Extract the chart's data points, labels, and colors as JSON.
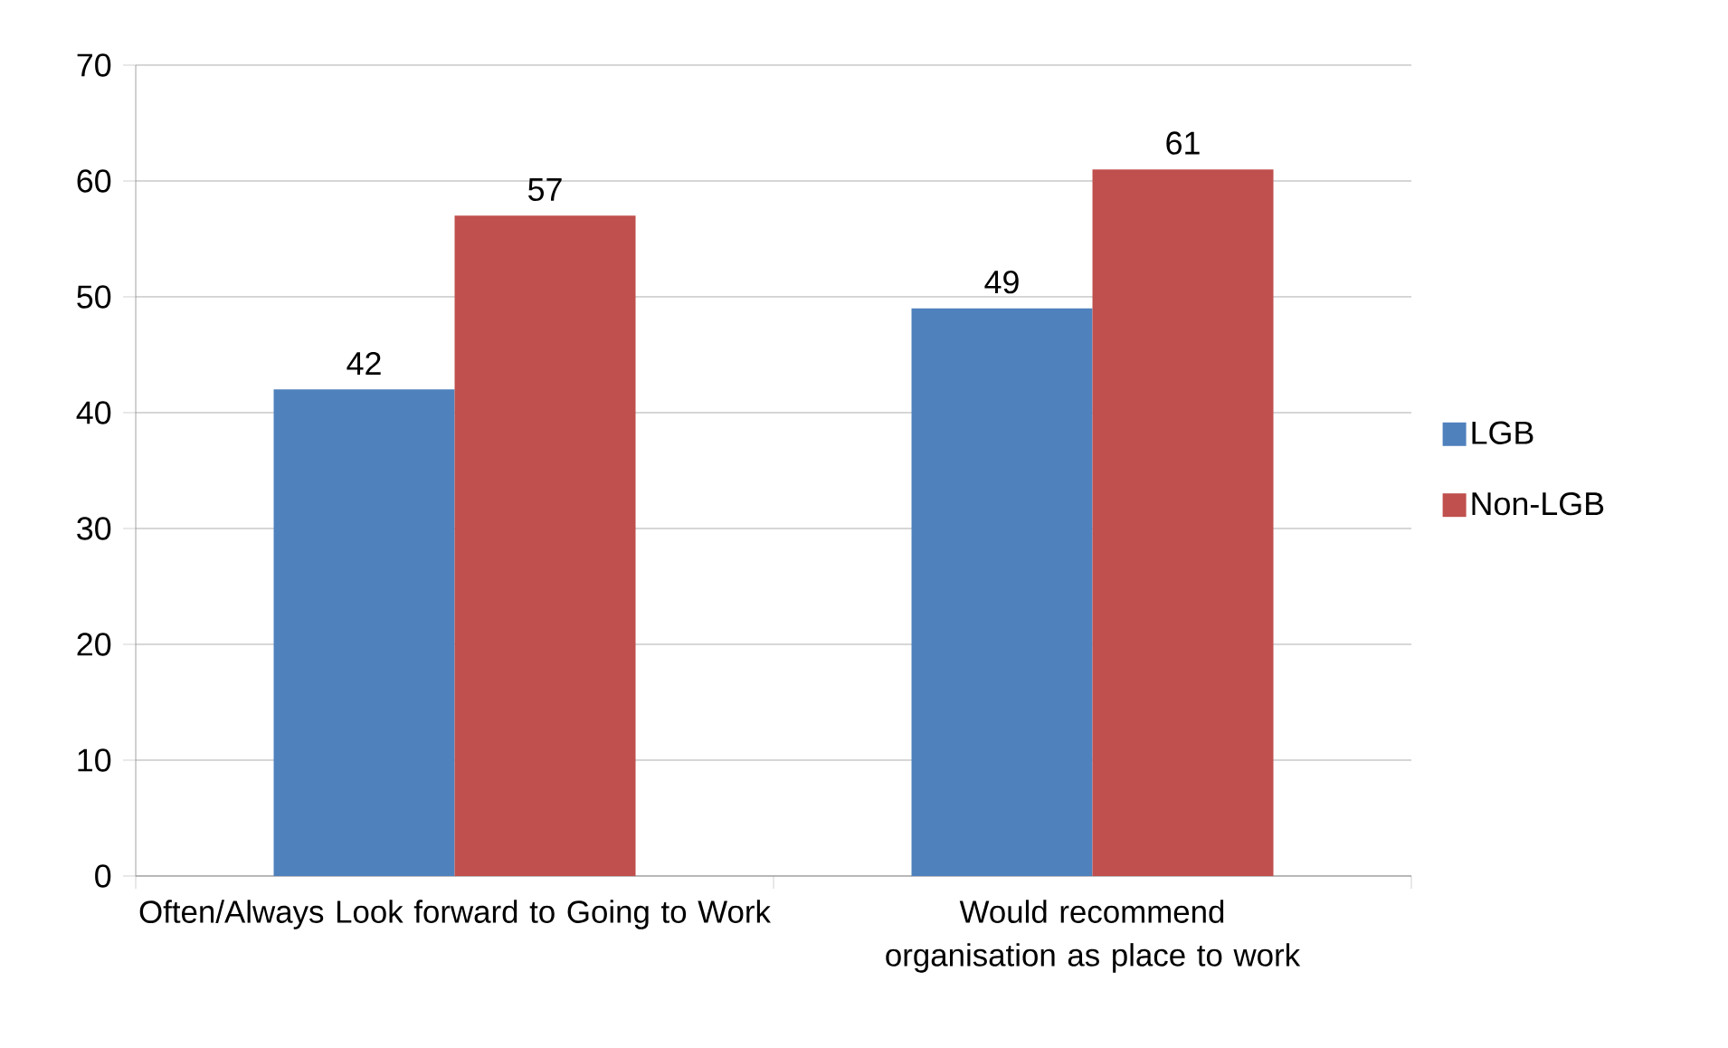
{
  "chart_data": {
    "type": "bar",
    "categories": [
      "Often/Always Look forward to Going to Work",
      "Would recommend organisation as place to work"
    ],
    "series": [
      {
        "name": "LGB",
        "color": "#4f81bd",
        "values": [
          42,
          49
        ]
      },
      {
        "name": "Non-LGB",
        "color": "#c0504d",
        "values": [
          57,
          61
        ]
      }
    ],
    "ylim": [
      0,
      70
    ],
    "yticks": [
      0,
      10,
      20,
      30,
      40,
      50,
      60,
      70
    ],
    "grid": "y",
    "legend": "right",
    "data_labels": true
  }
}
